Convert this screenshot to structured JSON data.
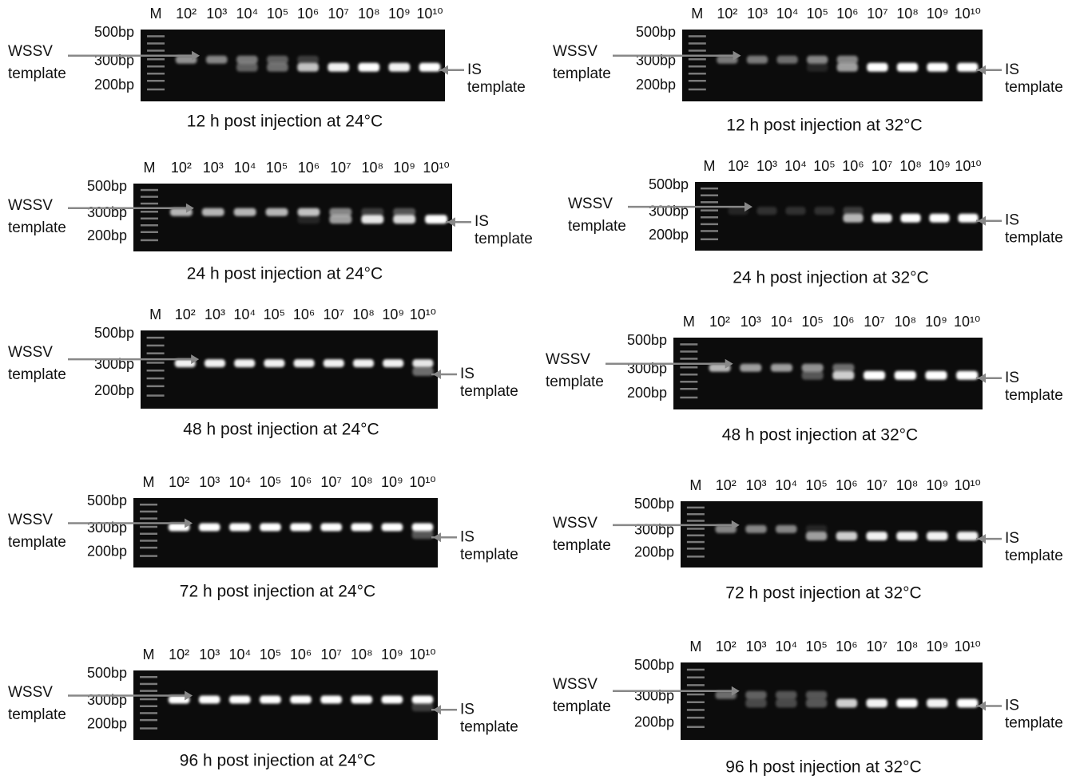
{
  "panels": [
    {
      "lanes": [
        "M",
        "10²",
        "10³",
        "10⁴",
        "10⁵",
        "10⁶",
        "10⁷",
        "10⁸",
        "10⁹",
        "10¹⁰"
      ],
      "markers": [
        "500bp",
        "300bp",
        "200bp"
      ],
      "left_label": [
        "WSSV",
        "template"
      ],
      "right_label": [
        "IS",
        "template"
      ],
      "caption": "12 h post injection at 24°C"
    },
    {
      "lanes": [
        "M",
        "10²",
        "10³",
        "10⁴",
        "10⁵",
        "10⁶",
        "10⁷",
        "10⁸",
        "10⁹",
        "10¹⁰"
      ],
      "markers": [
        "500bp",
        "300bp",
        "200bp"
      ],
      "left_label": [
        "WSSV",
        "template"
      ],
      "right_label": [
        "IS",
        "template"
      ],
      "caption": "24 h post injection at 24°C"
    },
    {
      "lanes": [
        "M",
        "10²",
        "10³",
        "10⁴",
        "10⁵",
        "10⁶",
        "10⁷",
        "10⁸",
        "10⁹",
        "10¹⁰"
      ],
      "markers": [
        "500bp",
        "300bp",
        "200bp"
      ],
      "left_label": [
        "WSSV",
        "template"
      ],
      "right_label": [
        "IS",
        "template"
      ],
      "caption": "48 h post injection at 24°C"
    },
    {
      "lanes": [
        "M",
        "10²",
        "10³",
        "10⁴",
        "10⁵",
        "10⁶",
        "10⁷",
        "10⁸",
        "10⁹",
        "10¹⁰"
      ],
      "markers": [
        "500bp",
        "300bp",
        "200bp"
      ],
      "left_label": [
        "WSSV",
        "template"
      ],
      "right_label": [
        "IS",
        "template"
      ],
      "caption": "72 h post injection at 24°C"
    },
    {
      "lanes": [
        "M",
        "10²",
        "10³",
        "10⁴",
        "10⁵",
        "10⁶",
        "10⁷",
        "10⁸",
        "10⁹",
        "10¹⁰"
      ],
      "markers": [
        "500bp",
        "300bp",
        "200bp"
      ],
      "left_label": [
        "WSSV",
        "template"
      ],
      "right_label": [
        "IS",
        "template"
      ],
      "caption": "96 h post injection at 24°C"
    },
    {
      "lanes": [
        "M",
        "10²",
        "10³",
        "10⁴",
        "10⁵",
        "10⁶",
        "10⁷",
        "10⁸",
        "10⁹",
        "10¹⁰"
      ],
      "markers": [
        "500bp",
        "300bp",
        "200bp"
      ],
      "left_label": [
        "WSSV",
        "template"
      ],
      "right_label": [
        "IS",
        "template"
      ],
      "caption": "12 h post injection at 32°C"
    },
    {
      "lanes": [
        "M",
        "10²",
        "10³",
        "10⁴",
        "10⁵",
        "10⁶",
        "10⁷",
        "10⁸",
        "10⁹",
        "10¹⁰"
      ],
      "markers": [
        "500bp",
        "300bp",
        "200bp"
      ],
      "left_label": [
        "WSSV",
        "template"
      ],
      "right_label": [
        "IS",
        "template"
      ],
      "caption": "24 h post injection at 32°C"
    },
    {
      "lanes": [
        "M",
        "10²",
        "10³",
        "10⁴",
        "10⁵",
        "10⁶",
        "10⁷",
        "10⁸",
        "10⁹",
        "10¹⁰"
      ],
      "markers": [
        "500bp",
        "300bp",
        "200bp"
      ],
      "left_label": [
        "WSSV",
        "template"
      ],
      "right_label": [
        "IS",
        "template"
      ],
      "caption": "48 h post injection at 32°C"
    },
    {
      "lanes": [
        "M",
        "10²",
        "10³",
        "10⁴",
        "10⁵",
        "10⁶",
        "10⁷",
        "10⁸",
        "10⁹",
        "10¹⁰"
      ],
      "markers": [
        "500bp",
        "300bp",
        "200bp"
      ],
      "left_label": [
        "WSSV",
        "template"
      ],
      "right_label": [
        "IS",
        "template"
      ],
      "caption": "72 h post injection at 32°C"
    },
    {
      "lanes": [
        "M",
        "10²",
        "10³",
        "10⁴",
        "10⁵",
        "10⁶",
        "10⁷",
        "10⁸",
        "10⁹",
        "10¹⁰"
      ],
      "markers": [
        "500bp",
        "300bp",
        "200bp"
      ],
      "left_label": [
        "WSSV",
        "template"
      ],
      "right_label": [
        "IS",
        "template"
      ],
      "caption": "96 h post injection at 32°C"
    }
  ]
}
